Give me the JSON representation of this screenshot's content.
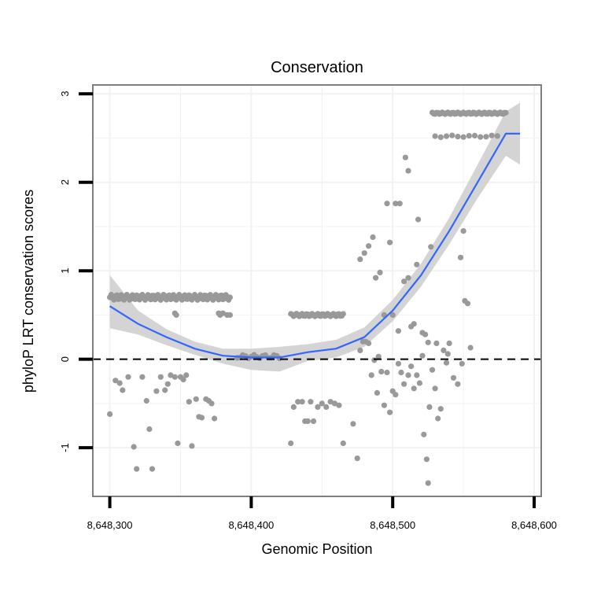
{
  "chart_data": {
    "type": "scatter",
    "title": "Conservation",
    "xlabel": "Genomic Position",
    "ylabel": "phyloP LRT conservation scores",
    "xlim": [
      8648288,
      8648605
    ],
    "ylim": [
      -1.55,
      3.1
    ],
    "x_ticks": [
      8648300,
      8648400,
      8648500,
      8648600
    ],
    "x_tick_labels": [
      "8,648,300",
      "8,648,400",
      "8,648,500",
      "8,648,600"
    ],
    "y_ticks": [
      -1,
      0,
      1,
      2,
      3
    ],
    "y_tick_labels": [
      "-1",
      "0",
      "1",
      "2",
      "3"
    ],
    "grid": true,
    "reference_line": {
      "y": 0,
      "style": "dashed"
    },
    "colors": {
      "points": "#999999",
      "smooth_line": "#3366ff",
      "band": "#cccccc",
      "frame": "#7f7f7f",
      "grid": "#f2f2f2"
    },
    "points": [
      [
        8648300,
        -0.62
      ],
      [
        8648304,
        -0.24
      ],
      [
        8648307,
        -0.27
      ],
      [
        8648309,
        -0.35
      ],
      [
        8648313,
        -0.2
      ],
      [
        8648317,
        -0.99
      ],
      [
        8648319,
        -1.24
      ],
      [
        8648323,
        -0.2
      ],
      [
        8648326,
        -0.47
      ],
      [
        8648328,
        -0.79
      ],
      [
        8648330,
        -1.24
      ],
      [
        8648333,
        -0.36
      ],
      [
        8648336,
        -0.2
      ],
      [
        8648339,
        -0.35
      ],
      [
        8648341,
        -0.28
      ],
      [
        8648343,
        -0.18
      ],
      [
        8648346,
        -0.2
      ],
      [
        8648348,
        -0.95
      ],
      [
        8648350,
        -0.2
      ],
      [
        8648352,
        -0.23
      ],
      [
        8648354,
        -0.18
      ],
      [
        8648356,
        -0.48
      ],
      [
        8648358,
        -0.98
      ],
      [
        8648361,
        -0.45
      ],
      [
        8648363,
        -0.65
      ],
      [
        8648365,
        -0.66
      ],
      [
        8648368,
        -0.45
      ],
      [
        8648370,
        -0.47
      ],
      [
        8648372,
        -0.5
      ],
      [
        8648374,
        -0.67
      ],
      [
        8648346,
        0.52
      ],
      [
        8648347,
        0.5
      ],
      [
        8648377,
        0.52
      ],
      [
        8648378,
        0.5
      ],
      [
        8648380,
        0.52
      ],
      [
        8648383,
        0.5
      ],
      [
        8648385,
        0.5
      ],
      [
        8648428,
        -0.95
      ],
      [
        8648430,
        -0.54
      ],
      [
        8648433,
        -0.48
      ],
      [
        8648436,
        -0.48
      ],
      [
        8648438,
        -0.7
      ],
      [
        8648440,
        -0.7
      ],
      [
        8648442,
        -0.48
      ],
      [
        8648444,
        -0.7
      ],
      [
        8648447,
        -0.54
      ],
      [
        8648450,
        -0.5
      ],
      [
        8648453,
        -0.54
      ],
      [
        8648456,
        -0.48
      ],
      [
        8648459,
        -0.5
      ],
      [
        8648462,
        -0.52
      ],
      [
        8648465,
        -0.95
      ],
      [
        8648472,
        -0.73
      ],
      [
        8648475,
        -1.12
      ],
      [
        8648477,
        1.13
      ],
      [
        8648480,
        1.2
      ],
      [
        8648483,
        1.28
      ],
      [
        8648486,
        1.38
      ],
      [
        8648488,
        0.92
      ],
      [
        8648491,
        0.98
      ],
      [
        8648494,
        0.5
      ],
      [
        8648496,
        1.76
      ],
      [
        8648498,
        1.32
      ],
      [
        8648500,
        0.5
      ],
      [
        8648502,
        1.76
      ],
      [
        8648504,
        0.32
      ],
      [
        8648505,
        1.76
      ],
      [
        8648508,
        0.88
      ],
      [
        8648509,
        2.28
      ],
      [
        8648511,
        0.92
      ],
      [
        8648511,
        2.13
      ],
      [
        8648513,
        0.37
      ],
      [
        8648515,
        0.4
      ],
      [
        8648517,
        1.07
      ],
      [
        8648518,
        1.58
      ],
      [
        8648521,
        0.3
      ],
      [
        8648523,
        0.28
      ],
      [
        8648525,
        0.19
      ],
      [
        8648527,
        1.27
      ],
      [
        8648531,
        0.18
      ],
      [
        8648539,
        0.06
      ],
      [
        8648548,
        1.15
      ],
      [
        8648550,
        1.45
      ],
      [
        8648551,
        0.66
      ],
      [
        8648553,
        0.63
      ],
      [
        8648555,
        0.13
      ],
      [
        8648477,
        0.1
      ],
      [
        8648479,
        0.2
      ],
      [
        8648481,
        0.2
      ],
      [
        8648483,
        0.18
      ],
      [
        8648485,
        -0.18
      ],
      [
        8648487,
        -0.01
      ],
      [
        8648489,
        -0.38
      ],
      [
        8648490,
        0.03
      ],
      [
        8648492,
        -0.14
      ],
      [
        8648494,
        -0.52
      ],
      [
        8648496,
        -0.15
      ],
      [
        8648498,
        -0.6
      ],
      [
        8648500,
        -0.36
      ],
      [
        8648502,
        -0.4
      ],
      [
        8648504,
        -0.05
      ],
      [
        8648506,
        -0.15
      ],
      [
        8648508,
        -0.28
      ],
      [
        8648511,
        -0.18
      ],
      [
        8648513,
        -0.08
      ],
      [
        8648515,
        -0.33
      ],
      [
        8648517,
        -0.18
      ],
      [
        8648519,
        -0.27
      ],
      [
        8648521,
        0.04
      ],
      [
        8648522,
        -0.85
      ],
      [
        8648524,
        -1.13
      ],
      [
        8648525,
        -1.4
      ],
      [
        8648526,
        -0.54
      ],
      [
        8648528,
        -0.12
      ],
      [
        8648530,
        -0.33
      ],
      [
        8648532,
        -0.67
      ],
      [
        8648534,
        -0.56
      ],
      [
        8648536,
        0.1
      ],
      [
        8648538,
        -0.04
      ],
      [
        8648540,
        0.18
      ],
      [
        8648543,
        -0.21
      ],
      [
        8648546,
        -0.28
      ],
      [
        8648549,
        -0.05
      ]
    ],
    "dense_bands": [
      {
        "x_start": 8648300,
        "x_end": 8648385,
        "step": 1,
        "y": 0.7,
        "jitter": 0.03
      },
      {
        "x_start": 8648428,
        "x_end": 8648465,
        "step": 1,
        "y": 0.5,
        "jitter": 0.015
      },
      {
        "x_start": 8648528,
        "x_end": 8648580,
        "step": 1,
        "y": 2.78,
        "jitter": 0.01
      },
      {
        "x_start": 8648530,
        "x_end": 8648575,
        "step": 4,
        "y": 2.52,
        "jitter": 0.01
      },
      {
        "x_start": 8648390,
        "x_end": 8648420,
        "step": 2,
        "y": 0.03,
        "jitter": 0.02
      }
    ],
    "smooth_line": {
      "x": [
        8648300,
        8648320,
        8648340,
        8648360,
        8648380,
        8648400,
        8648420,
        8648440,
        8648460,
        8648480,
        8648500,
        8648520,
        8648540,
        8648560,
        8648580,
        8648590
      ],
      "y": [
        0.6,
        0.4,
        0.25,
        0.12,
        0.04,
        0.02,
        0.02,
        0.08,
        0.12,
        0.25,
        0.55,
        0.95,
        1.45,
        2.0,
        2.55,
        2.55
      ]
    },
    "confidence_band": {
      "x": [
        8648300,
        8648320,
        8648340,
        8648360,
        8648380,
        8648400,
        8648420,
        8648440,
        8648460,
        8648480,
        8648500,
        8648520,
        8648540,
        8648560,
        8648580,
        8648590
      ],
      "lower": [
        0.35,
        0.28,
        0.16,
        0.05,
        -0.05,
        -0.12,
        -0.14,
        -0.02,
        0.02,
        0.14,
        0.43,
        0.82,
        1.3,
        1.82,
        2.3,
        2.2
      ],
      "upper": [
        0.95,
        0.55,
        0.34,
        0.2,
        0.12,
        0.12,
        0.14,
        0.17,
        0.22,
        0.36,
        0.67,
        1.08,
        1.6,
        2.2,
        2.8,
        2.9
      ]
    }
  }
}
